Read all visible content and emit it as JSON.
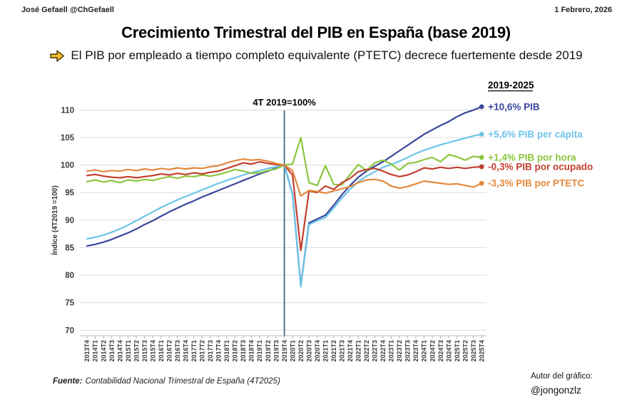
{
  "header": {
    "author_handle": "José Gefaell @ChGefaell",
    "date": "1 Febrero, 2026"
  },
  "title": "Crecimiento Trimestral del PIB en España (base 2019)",
  "subtitle": "El PIB por empleado a tiempo completo equivalente (PTETC) decrece fuertemente desde 2019",
  "footer": {
    "source_label": "Fuente:",
    "source_text": "Contabilidad Nacional Trimestral de España (4T2025)",
    "author_caption": "Autor del gráfico:",
    "author_handle": "@jongonzlz"
  },
  "chart_data": {
    "type": "line",
    "annotation": "4T 2019=100%",
    "annotation_x": "2019T4",
    "legend_title": "2019-2025",
    "ylabel": "Índice (4T2019 =100)",
    "ylim": [
      70,
      110
    ],
    "yticks": [
      70,
      75,
      80,
      85,
      90,
      95,
      100,
      105,
      110
    ],
    "grid": true,
    "legend_position": "right-of-line-ends",
    "colors": {
      "pib": "#3a479d",
      "pib_per_capita": "#6ec4e8",
      "pib_por_hora": "#8cc63f",
      "pib_por_ocupado": "#c2402f",
      "pib_por_ptetc": "#e3893e",
      "reference_line": "#2a5d70",
      "gridline": "#dcdcdc",
      "axis": "#b5b5b5"
    },
    "categories": [
      "2013T4",
      "2014T1",
      "2014T2",
      "2014T3",
      "2014T4",
      "2015T1",
      "2015T2",
      "2015T3",
      "2015T4",
      "2016T1",
      "2016T2",
      "2016T3",
      "2016T4",
      "2017T1",
      "2017T2",
      "2017T3",
      "2017T4",
      "2018T1",
      "2018T2",
      "2018T3",
      "2018T4",
      "2019T1",
      "2019T2",
      "2019T3",
      "2019T4",
      "2020T1",
      "2020T2",
      "2020T3",
      "2020T4",
      "2021T1",
      "2021T2",
      "2021T3",
      "2021T4",
      "2022T1",
      "2022T2",
      "2022T3",
      "2022T4",
      "2023T1",
      "2023T2",
      "2023T3",
      "2023T4",
      "2024T1",
      "2024T2",
      "2024T3",
      "2024T4",
      "2025T1",
      "2025T2",
      "2025T3",
      "2025T4"
    ],
    "series": [
      {
        "name": "+10,6% PIB",
        "key": "pib",
        "color": "#3a479d",
        "values": [
          85.3,
          85.6,
          86.0,
          86.5,
          87.1,
          87.7,
          88.4,
          89.2,
          89.9,
          90.7,
          91.5,
          92.2,
          92.9,
          93.5,
          94.2,
          94.8,
          95.4,
          96.0,
          96.6,
          97.2,
          97.8,
          98.4,
          98.9,
          99.5,
          100.0,
          94.7,
          78.1,
          89.5,
          90.2,
          90.9,
          92.7,
          94.6,
          96.3,
          97.8,
          98.9,
          99.8,
          100.6,
          101.6,
          102.6,
          103.6,
          104.6,
          105.6,
          106.4,
          107.2,
          107.9,
          108.8,
          109.5,
          110.0,
          110.6
        ]
      },
      {
        "name": "+5,6% PIB per cápita",
        "key": "pib_per_capita",
        "color": "#6ec4e8",
        "values": [
          86.6,
          86.9,
          87.3,
          87.8,
          88.4,
          89.1,
          89.9,
          90.7,
          91.5,
          92.3,
          93.0,
          93.7,
          94.3,
          94.9,
          95.5,
          96.1,
          96.7,
          97.2,
          97.7,
          98.2,
          98.6,
          99.0,
          99.4,
          99.7,
          100.0,
          94.6,
          77.9,
          89.2,
          89.9,
          90.5,
          92.2,
          94.0,
          95.6,
          97.0,
          98.0,
          98.8,
          99.6,
          100.1,
          100.7,
          101.4,
          102.1,
          102.7,
          103.2,
          103.7,
          104.1,
          104.5,
          104.9,
          105.3,
          105.6
        ]
      },
      {
        "name": "+1,4% PIB por hora",
        "key": "pib_por_hora",
        "color": "#8cc63f",
        "values": [
          97.0,
          97.3,
          96.9,
          97.2,
          96.8,
          97.3,
          97.1,
          97.4,
          97.2,
          97.6,
          97.9,
          97.6,
          98.0,
          97.9,
          98.2,
          98.0,
          98.3,
          98.7,
          99.2,
          98.9,
          98.5,
          98.6,
          99.0,
          99.3,
          100.0,
          100.2,
          105.0,
          96.8,
          96.3,
          99.9,
          96.5,
          96.4,
          98.3,
          100.1,
          99.0,
          100.4,
          100.9,
          100.2,
          99.1,
          100.3,
          100.5,
          101.0,
          101.4,
          100.6,
          101.9,
          101.5,
          100.9,
          101.6,
          101.4
        ]
      },
      {
        "name": "-0,3% PIB por ocupado",
        "key": "pib_por_ocupado",
        "color": "#c2402f",
        "values": [
          98.1,
          98.3,
          98.0,
          97.8,
          97.7,
          97.9,
          97.7,
          97.9,
          98.1,
          98.4,
          98.2,
          98.5,
          98.3,
          98.6,
          98.4,
          98.7,
          98.9,
          99.4,
          99.9,
          100.4,
          100.2,
          100.6,
          100.3,
          100.1,
          100.0,
          98.2,
          84.5,
          95.3,
          95.0,
          96.2,
          95.6,
          96.8,
          97.6,
          98.8,
          99.2,
          99.4,
          98.9,
          98.3,
          97.9,
          98.2,
          98.8,
          99.5,
          99.3,
          99.6,
          99.4,
          99.6,
          99.4,
          99.6,
          99.7
        ]
      },
      {
        "name": "-3,3% PIB por PTETC",
        "key": "pib_por_ptetc",
        "color": "#e3893e",
        "values": [
          98.9,
          99.1,
          98.8,
          99.0,
          98.9,
          99.2,
          99.0,
          99.3,
          99.1,
          99.4,
          99.2,
          99.5,
          99.3,
          99.5,
          99.4,
          99.7,
          99.9,
          100.4,
          100.8,
          101.1,
          100.9,
          101.0,
          100.7,
          100.3,
          100.0,
          99.0,
          94.4,
          95.4,
          95.2,
          94.9,
          95.3,
          95.7,
          96.1,
          96.8,
          97.3,
          97.4,
          97.1,
          96.2,
          95.8,
          96.1,
          96.6,
          97.1,
          96.9,
          96.7,
          96.5,
          96.6,
          96.3,
          96.0,
          96.7
        ]
      }
    ]
  }
}
